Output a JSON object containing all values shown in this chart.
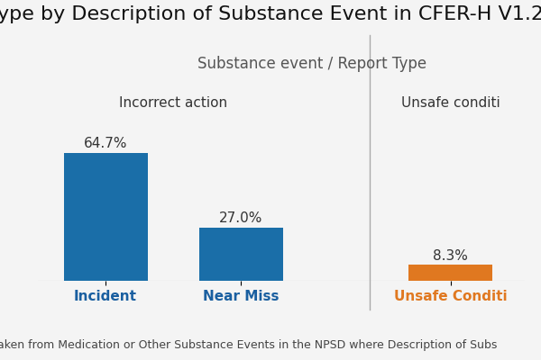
{
  "title": "ype by Description of Substance Event in CFER-H V1.2",
  "subtitle": "Substance event / Report Type",
  "group_labels": [
    "Incorrect action",
    "Unsafe conditi"
  ],
  "categories": [
    "Incident",
    "Near Miss",
    "Unsafe Conditi"
  ],
  "values": [
    64.7,
    27.0,
    8.3
  ],
  "bar_colors": [
    "#1a6ea8",
    "#1a6ea8",
    "#e07820"
  ],
  "xlabel_colors": [
    "#1a5fa0",
    "#1a5fa0",
    "#e07820"
  ],
  "annotations": [
    "64.7%",
    "27.0%",
    "8.3%"
  ],
  "ylim": [
    0,
    80
  ],
  "background_color": "#f4f4f4",
  "footer": "aken from Medication or Other Substance Events in the NPSD where Description of Subs",
  "title_fontsize": 16,
  "subtitle_fontsize": 12,
  "group_label_fontsize": 11,
  "bar_label_fontsize": 11,
  "xticklabel_fontsize": 11,
  "footer_fontsize": 9
}
